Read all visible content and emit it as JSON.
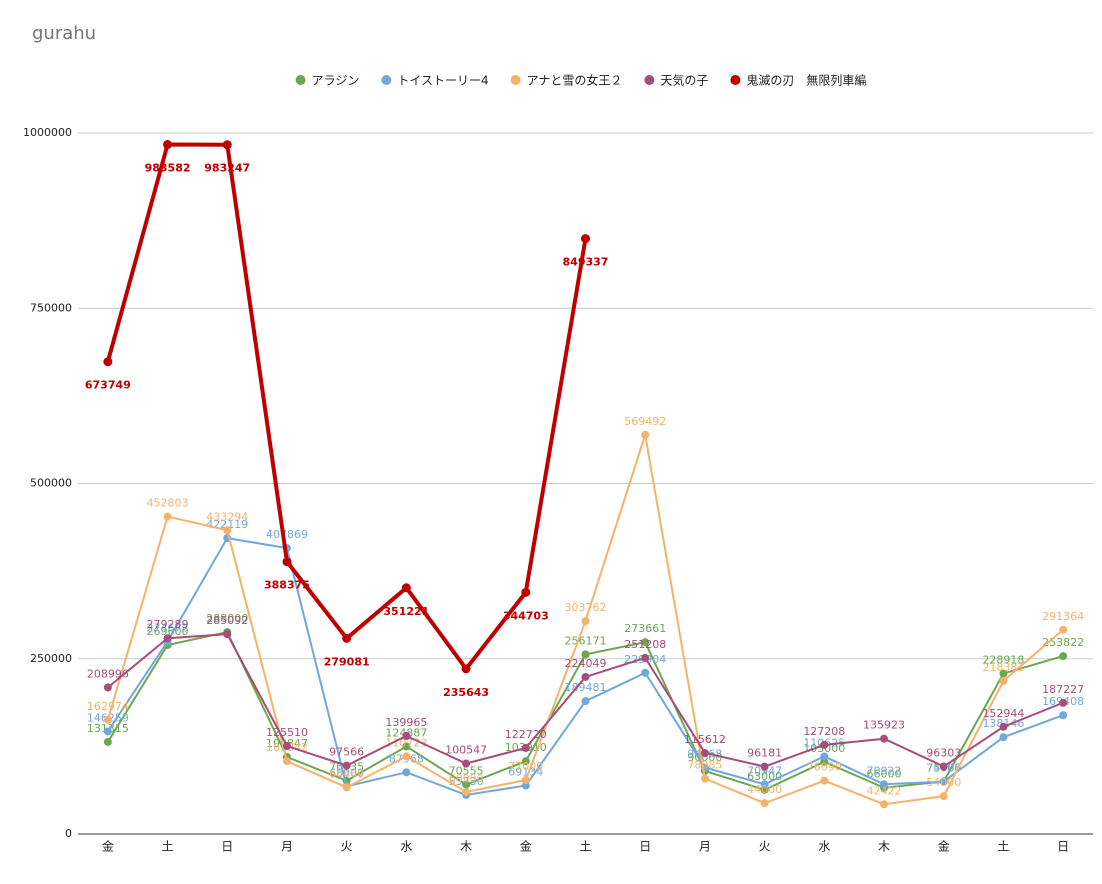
{
  "chart_data": {
    "type": "line",
    "title": "gurahu",
    "categories": [
      "金",
      "土",
      "日",
      "月",
      "火",
      "水",
      "木",
      "金",
      "土",
      "日",
      "月",
      "火",
      "水",
      "木",
      "金",
      "土",
      "日"
    ],
    "series": [
      {
        "name": "アラジン",
        "color": "#6aa84f",
        "values": [
          131315,
          269600,
          288000,
          109847,
          76035,
          124887,
          70555,
          103910,
          256171,
          273661,
          90000,
          63000,
          103000,
          66000,
          75000,
          228918,
          253822
        ]
      },
      {
        "name": "トイストーリー4",
        "color": "#6fa8dc",
        "values": [
          146259,
          274672,
          422119,
          407869,
          68000,
          87968,
          55730,
          69134,
          189481,
          229904,
          94668,
          70947,
          110625,
          70922,
          74786,
          138146,
          169408
        ]
      },
      {
        "name": "アナと雪の女王２",
        "color": "#f6b26b",
        "values": [
          162974,
          452803,
          433294,
          103842,
          66469,
          110723,
          60000,
          77000,
          303762,
          569492,
          78985,
          44000,
          76090,
          42422,
          54000,
          218381,
          291364
        ]
      },
      {
        "name": "天気の子",
        "color": "#a64d79",
        "values": [
          208996,
          279289,
          285092,
          125510,
          97566,
          139965,
          100547,
          122720,
          224049,
          251208,
          115612,
          96181,
          127208,
          135923,
          96303,
          152944,
          187227
        ]
      },
      {
        "name": "鬼滅の刃　無限列車編",
        "color": "#c00000",
        "values": [
          673749,
          983582,
          983247,
          388375,
          279081,
          351221,
          235643,
          344703,
          849337,
          null,
          null,
          null,
          null,
          null,
          null,
          null,
          null
        ]
      }
    ],
    "ylim": [
      0,
      1000000
    ],
    "yticks": [
      0,
      250000,
      500000,
      750000,
      1000000
    ],
    "grid": true
  }
}
